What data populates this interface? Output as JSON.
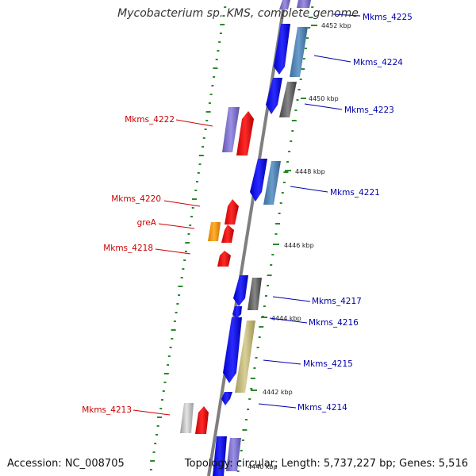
{
  "title": "Mycobacterium sp. KMS, complete genome",
  "accession": "Accession: NC_008705",
  "topology": "Topology: circular; Length: 5,737,227 bp; Genes: 5,516",
  "ticks": [
    "4452 kbp",
    "4450 kbp",
    "4448 kbp",
    "4446 kbp",
    "4444 kbp",
    "4442 kbp",
    "4440 kbp"
  ],
  "reverse_genes": [
    "Mkms_4222",
    "Mkms_4220",
    "greA",
    "Mkms_4218",
    "Mkms_4213"
  ],
  "forward_genes": [
    "Mkms_4225",
    "Mkms_4224",
    "Mkms_4223",
    "Mkms_4221",
    "Mkms_4217",
    "Mkms_4216",
    "Mkms_4215",
    "Mkms_4214"
  ],
  "colors": {
    "reverse_label": "#cc0000",
    "forward_label": "#0000aa",
    "backbone": "#808080",
    "gc_ticks": "#2a8a2a"
  }
}
